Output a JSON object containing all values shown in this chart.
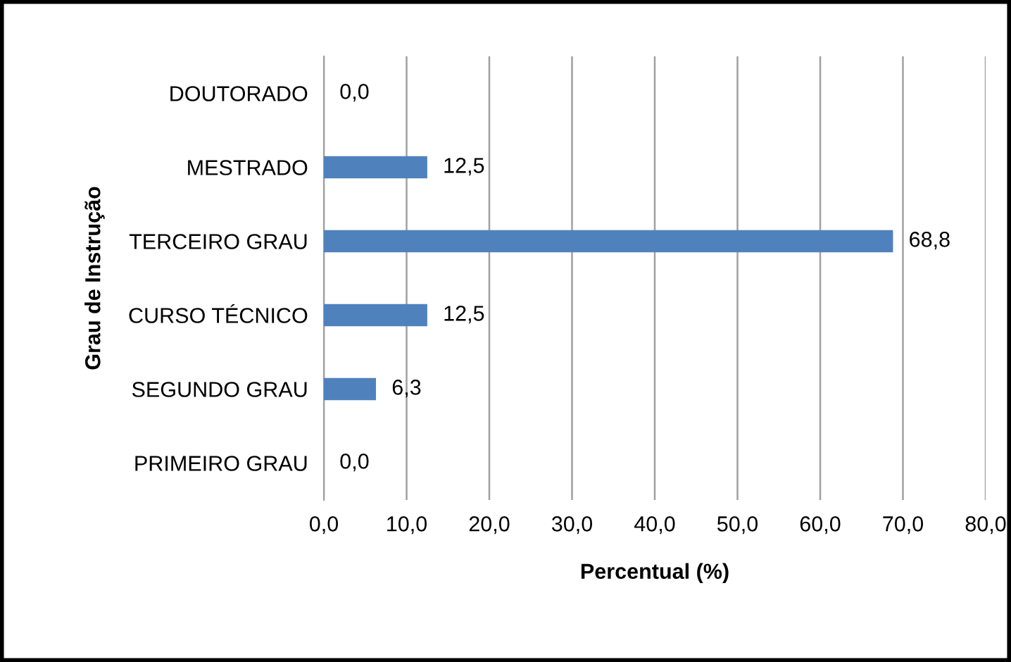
{
  "chart_data": {
    "type": "bar",
    "orientation": "horizontal",
    "xlabel": "Percentual (%)",
    "ylabel": "Grau de Instrução",
    "categories": [
      "DOUTORADO",
      "MESTRADO",
      "TERCEIRO GRAU",
      "CURSO TÉCNICO",
      "SEGUNDO GRAU",
      "PRIMEIRO GRAU"
    ],
    "values": [
      0.0,
      12.5,
      68.8,
      12.5,
      6.3,
      0.0
    ],
    "value_labels": [
      "0,0",
      "12,5",
      "68,8",
      "12,5",
      "6,3",
      "0,0"
    ],
    "color": "#4f81bd",
    "xlim": [
      0,
      80
    ],
    "xticks": [
      {
        "value": 0,
        "label": "0,0"
      },
      {
        "value": 10,
        "label": "10,0"
      },
      {
        "value": 20,
        "label": "20,0"
      },
      {
        "value": 30,
        "label": "30,0"
      },
      {
        "value": 40,
        "label": "40,0"
      },
      {
        "value": 50,
        "label": "50,0"
      },
      {
        "value": 60,
        "label": "60,0"
      },
      {
        "value": 70,
        "label": "70,0"
      },
      {
        "value": 80,
        "label": "80,0"
      }
    ],
    "grid": "x",
    "legend": false
  }
}
